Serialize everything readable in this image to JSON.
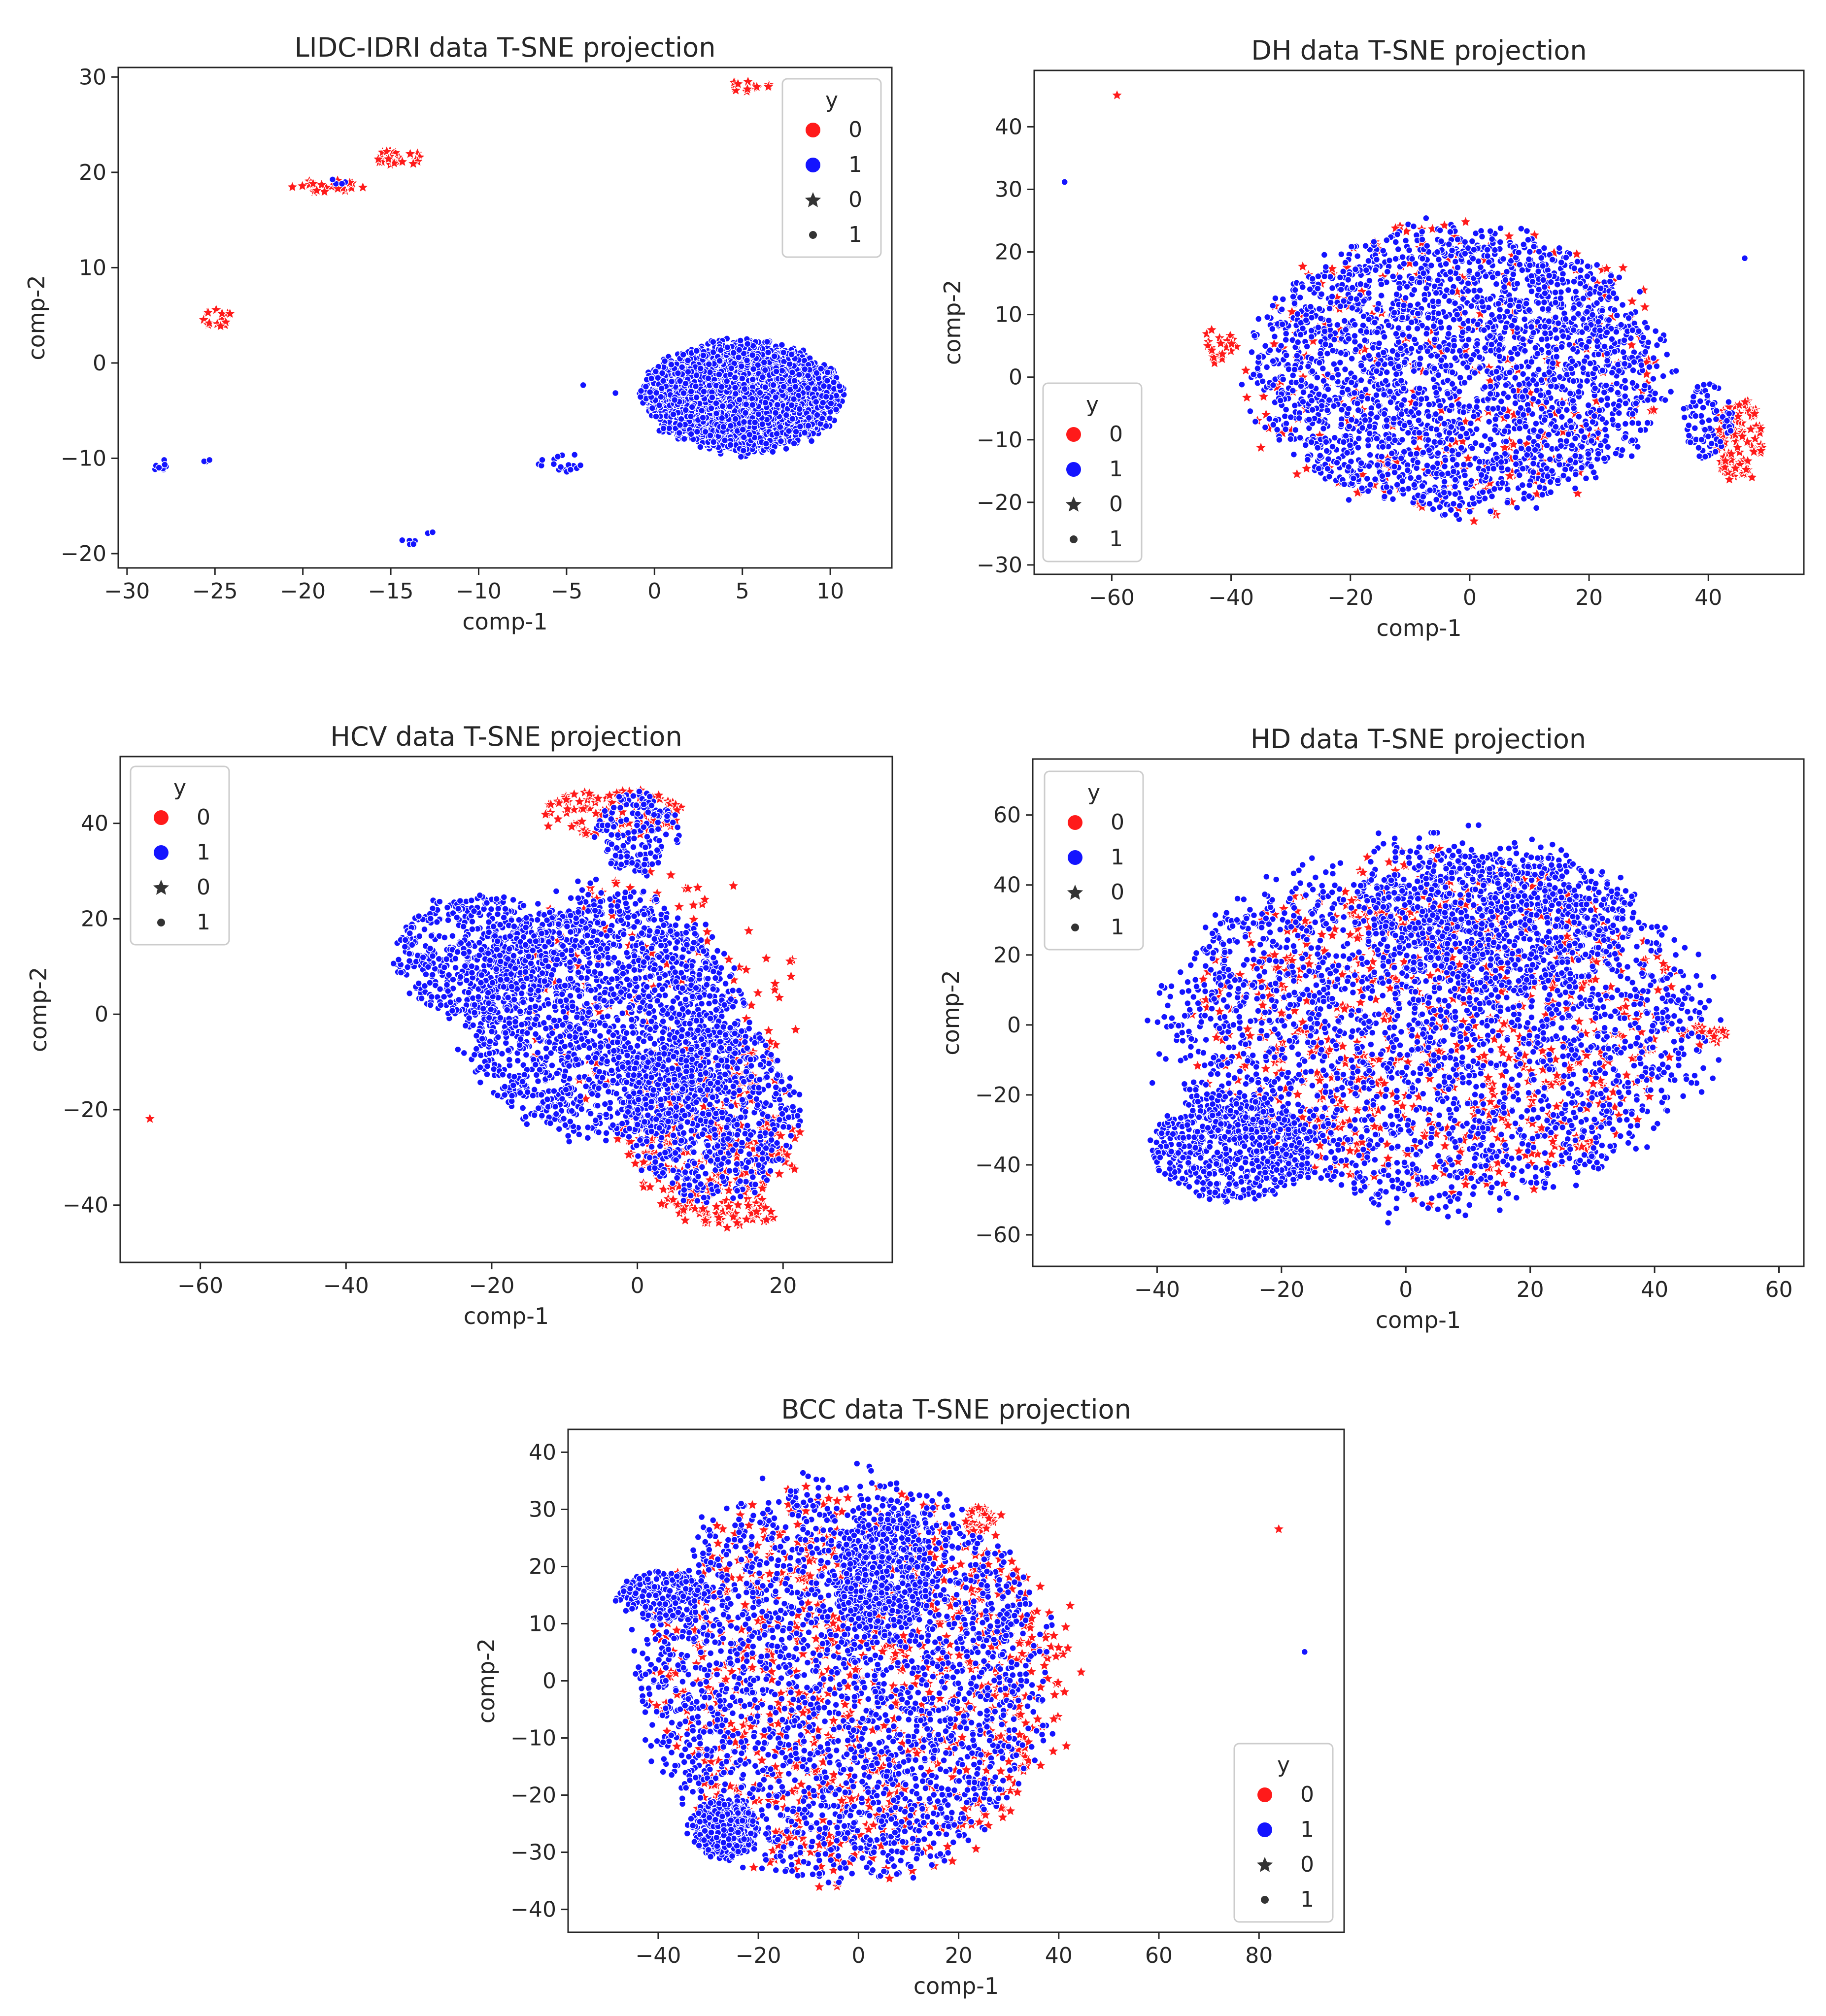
{
  "colors": {
    "class_0": "#ff1a1a",
    "class_1": "#1414ff",
    "marker_edge": "#ffffff",
    "axis": "#262626"
  },
  "legend": {
    "title": "y",
    "entries": [
      {
        "label": "0",
        "marker": "circle",
        "color": "#ff1a1a"
      },
      {
        "label": "1",
        "marker": "circle",
        "color": "#1414ff"
      },
      {
        "label": "0",
        "marker": "star",
        "color": "#333333"
      },
      {
        "label": "1",
        "marker": "dot",
        "color": "#333333"
      }
    ]
  },
  "chart_data": [
    {
      "type": "scatter",
      "title": "LIDC-IDRI data T-SNE projection",
      "xlabel": "comp-1",
      "ylabel": "comp-2",
      "xlim": [
        -30.5,
        13.5
      ],
      "ylim": [
        -21.5,
        31
      ],
      "xticks": [
        -30,
        -25,
        -20,
        -15,
        -10,
        -5,
        0,
        5,
        10
      ],
      "yticks": [
        -20,
        -10,
        0,
        10,
        20,
        30
      ],
      "legend_position": "top-right",
      "series": [
        {
          "name": "0",
          "marker": "star",
          "clusters": [
            {
              "cx": 5.5,
              "cy": 29,
              "rx": 1.2,
              "ry": 0.8,
              "n": 14
            },
            {
              "cx": -14.5,
              "cy": 21.5,
              "rx": 1.3,
              "ry": 1.0,
              "n": 24
            },
            {
              "cx": -24.8,
              "cy": 4.7,
              "rx": 0.9,
              "ry": 1.0,
              "n": 16
            },
            {
              "cx": -18.5,
              "cy": 18.5,
              "rx": 2.2,
              "ry": 0.7,
              "n": 22
            }
          ]
        },
        {
          "name": "1",
          "marker": "dot",
          "clusters": [
            {
              "cx": 5,
              "cy": -3.5,
              "rx": 6.5,
              "ry": 6.7,
              "n": 3000
            },
            {
              "cx": -28,
              "cy": -10.5,
              "rx": 0.7,
              "ry": 0.8,
              "n": 10
            },
            {
              "cx": -25.5,
              "cy": -10.3,
              "rx": 0.4,
              "ry": 0.2,
              "n": 4
            },
            {
              "cx": -4.8,
              "cy": -10.5,
              "rx": 1.0,
              "ry": 1.0,
              "n": 14
            },
            {
              "cx": -6.5,
              "cy": -10.5,
              "rx": 0.3,
              "ry": 0.5,
              "n": 4
            },
            {
              "cx": -14,
              "cy": -18.8,
              "rx": 0.5,
              "ry": 0.4,
              "n": 5
            },
            {
              "cx": -12.8,
              "cy": -17.8,
              "rx": 0.2,
              "ry": 0.2,
              "n": 2
            },
            {
              "cx": -4,
              "cy": -2.5,
              "rx": 0.2,
              "ry": 0.2,
              "n": 1
            },
            {
              "cx": -2.3,
              "cy": -3.3,
              "rx": 0.2,
              "ry": 0.2,
              "n": 1
            },
            {
              "cx": -18,
              "cy": 19,
              "rx": 0.6,
              "ry": 0.4,
              "n": 4
            }
          ]
        }
      ]
    },
    {
      "type": "scatter",
      "title": "DH data T-SNE projection",
      "xlabel": "comp-1",
      "ylabel": "comp-2",
      "xlim": [
        -73,
        56
      ],
      "ylim": [
        -31.5,
        49
      ],
      "xticks": [
        -60,
        -40,
        -20,
        0,
        20,
        40
      ],
      "yticks": [
        -30,
        -20,
        -10,
        0,
        10,
        20,
        30,
        40
      ],
      "legend_position": "bottom-left",
      "series": [
        {
          "name": "0",
          "marker": "star",
          "clusters": [
            {
              "cx": -2,
              "cy": 1,
              "rx": 41,
              "ry": 28,
              "n": 340
            },
            {
              "cx": 45,
              "cy": -10,
              "rx": 5,
              "ry": 8,
              "n": 110
            },
            {
              "cx": -42,
              "cy": 5,
              "rx": 3,
              "ry": 3,
              "n": 20
            },
            {
              "cx": -59,
              "cy": 45,
              "rx": 0.2,
              "ry": 0.2,
              "n": 1
            }
          ]
        },
        {
          "name": "1",
          "marker": "dot",
          "clusters": [
            {
              "cx": -2,
              "cy": 1,
              "rx": 40,
              "ry": 26,
              "n": 2600
            },
            {
              "cx": 40,
              "cy": -7,
              "rx": 5,
              "ry": 7,
              "n": 90
            },
            {
              "cx": -68,
              "cy": 31,
              "rx": 0.2,
              "ry": 0.2,
              "n": 1
            },
            {
              "cx": 46,
              "cy": 19,
              "rx": 0.2,
              "ry": 0.2,
              "n": 1
            }
          ]
        }
      ]
    },
    {
      "type": "scatter",
      "title": "HCV data T-SNE projection",
      "xlabel": "comp-1",
      "ylabel": "comp-2",
      "xlim": [
        -71,
        35
      ],
      "ylim": [
        -52,
        54
      ],
      "xticks": [
        -60,
        -40,
        -20,
        0,
        20
      ],
      "yticks": [
        -40,
        -20,
        0,
        20,
        40
      ],
      "legend_position": "top-left",
      "series": [
        {
          "name": "0",
          "marker": "star",
          "clusters": [
            {
              "cx": 10,
              "cy": -25,
              "rx": 14,
              "ry": 21,
              "n": 320
            },
            {
              "cx": -3,
              "cy": 42,
              "rx": 12,
              "ry": 6,
              "n": 110
            },
            {
              "cx": 3,
              "cy": 5,
              "rx": 22,
              "ry": 32,
              "n": 150
            },
            {
              "cx": 12,
              "cy": -42,
              "rx": 7,
              "ry": 3,
              "n": 40
            },
            {
              "cx": -67,
              "cy": -22,
              "rx": 0.2,
              "ry": 0.2,
              "n": 1
            }
          ]
        },
        {
          "name": "1",
          "marker": "dot",
          "clusters": [
            {
              "cx": -5,
              "cy": 0,
              "rx": 22,
              "ry": 30,
              "n": 1900
            },
            {
              "cx": -22,
              "cy": 12,
              "rx": 13,
              "ry": 15,
              "n": 500
            },
            {
              "cx": 10,
              "cy": -20,
              "rx": 14,
              "ry": 22,
              "n": 800
            },
            {
              "cx": 0,
              "cy": 38,
              "rx": 7,
              "ry": 10,
              "n": 170
            }
          ]
        }
      ]
    },
    {
      "type": "scatter",
      "title": "HD data T-SNE projection",
      "xlabel": "comp-1",
      "ylabel": "comp-2",
      "xlim": [
        -60,
        64
      ],
      "ylim": [
        -69,
        76
      ],
      "xticks": [
        -40,
        -20,
        0,
        20,
        40,
        60
      ],
      "yticks": [
        -60,
        -40,
        -20,
        0,
        20,
        40,
        60
      ],
      "legend_position": "top-left",
      "series": [
        {
          "name": "0",
          "marker": "star",
          "clusters": [
            {
              "cx": 5,
              "cy": 0,
              "rx": 45,
              "ry": 55,
              "n": 900
            },
            {
              "cx": 48,
              "cy": -3,
              "rx": 4,
              "ry": 3,
              "n": 22
            }
          ]
        },
        {
          "name": "1",
          "marker": "dot",
          "clusters": [
            {
              "cx": 5,
              "cy": 0,
              "rx": 50,
              "ry": 60,
              "n": 2500
            },
            {
              "cx": -28,
              "cy": -35,
              "rx": 15,
              "ry": 18,
              "n": 600
            },
            {
              "cx": 15,
              "cy": 30,
              "rx": 25,
              "ry": 25,
              "n": 700
            }
          ]
        }
      ]
    },
    {
      "type": "scatter",
      "title": "BCC data T-SNE projection",
      "xlabel": "comp-1",
      "ylabel": "comp-2",
      "xlim": [
        -58,
        97
      ],
      "ylim": [
        -44,
        44
      ],
      "xticks": [
        -40,
        -20,
        0,
        20,
        40,
        60,
        80
      ],
      "yticks": [
        -40,
        -30,
        -20,
        -10,
        0,
        10,
        20,
        30,
        40
      ],
      "legend_position": "bottom-right",
      "series": [
        {
          "name": "0",
          "marker": "star",
          "clusters": [
            {
              "cx": 0,
              "cy": 0,
              "rx": 48,
              "ry": 40,
              "n": 1100
            },
            {
              "cx": 24,
              "cy": 28,
              "rx": 3,
              "ry": 2.5,
              "n": 30
            },
            {
              "cx": 84,
              "cy": 26.5,
              "rx": 0.2,
              "ry": 0.2,
              "n": 1
            }
          ]
        },
        {
          "name": "1",
          "marker": "dot",
          "clusters": [
            {
              "cx": -3,
              "cy": 0,
              "rx": 47,
              "ry": 41,
              "n": 2500
            },
            {
              "cx": -27,
              "cy": -26,
              "rx": 8,
              "ry": 6,
              "n": 350
            },
            {
              "cx": 5,
              "cy": 18,
              "rx": 12,
              "ry": 12,
              "n": 450
            },
            {
              "cx": -40,
              "cy": 15,
              "rx": 10,
              "ry": 5,
              "n": 200
            },
            {
              "cx": 89,
              "cy": 5,
              "rx": 0.2,
              "ry": 0.2,
              "n": 1
            }
          ]
        }
      ]
    }
  ]
}
